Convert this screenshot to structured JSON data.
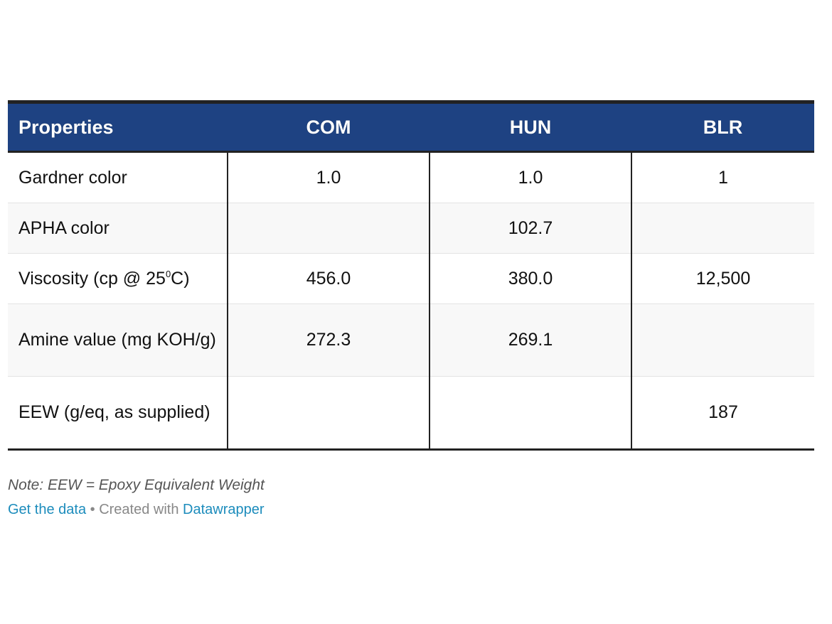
{
  "table": {
    "headers": [
      "Properties",
      "COM",
      "HUN",
      "BLR"
    ],
    "rows": [
      {
        "property": "Gardner color",
        "com": "1.0",
        "hun": "1.0",
        "blr": "1"
      },
      {
        "property": "APHA color",
        "com": "",
        "hun": "102.7",
        "blr": ""
      },
      {
        "property_main": "Viscosity (cp @ 25",
        "property_sup": "0",
        "property_tail": "C)",
        "com": "456.0",
        "hun": "380.0",
        "blr": "12,500"
      },
      {
        "property": "Amine value (mg KOH/g)",
        "com": "272.3",
        "hun": "269.1",
        "blr": ""
      },
      {
        "property": "EEW (g/eq, as supplied)",
        "com": "",
        "hun": "",
        "blr": "187"
      }
    ]
  },
  "note": "Note: EEW = Epoxy Equivalent Weight",
  "footer": {
    "get_data": "Get the data",
    "separator": " • Created with ",
    "datawrapper": "Datawrapper"
  },
  "colors": {
    "header_bg": "#1e4282",
    "link": "#1c8cbc"
  }
}
